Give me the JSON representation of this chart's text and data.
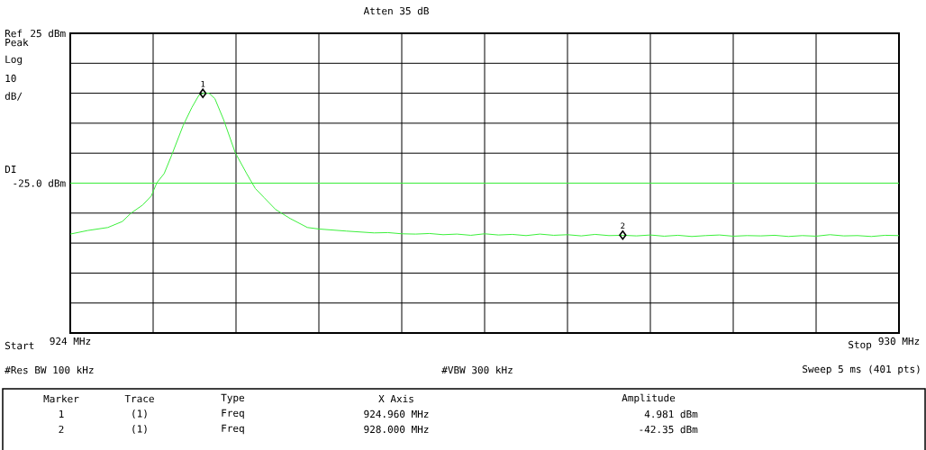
{
  "chart_data": {
    "type": "line",
    "x": [
      924.0,
      924.126,
      924.272,
      924.377,
      924.44,
      924.524,
      924.586,
      924.628,
      924.68,
      924.733,
      924.817,
      924.88,
      924.932,
      924.963,
      925.005,
      925.047,
      925.11,
      925.194,
      925.277,
      925.34,
      925.403,
      925.487,
      925.592,
      925.717,
      925.8,
      926.0,
      926.1,
      926.2,
      926.3,
      926.4,
      926.5,
      926.6,
      926.7,
      926.8,
      926.9,
      927.0,
      927.1,
      927.2,
      927.3,
      927.4,
      927.5,
      927.6,
      927.7,
      927.8,
      927.9,
      928.0,
      928.1,
      928.2,
      928.3,
      928.4,
      928.5,
      928.6,
      928.7,
      928.8,
      928.9,
      929.0,
      929.1,
      929.2,
      929.3,
      929.4,
      929.5,
      929.6,
      929.7,
      929.8,
      929.9,
      930.0
    ],
    "series": [
      {
        "color": "#3cf03c",
        "values": [
          -42,
          -40.8,
          -39.8,
          -37.8,
          -35,
          -32.3,
          -29.3,
          -24.8,
          -21.8,
          -15.8,
          -5.8,
          0.2,
          4.4,
          5.0,
          5.0,
          3.2,
          -3.8,
          -14.8,
          -21.8,
          -26.8,
          -29.8,
          -33.8,
          -36.8,
          -39.8,
          -40.3,
          -41.0,
          -41.3,
          -41.6,
          -41.5,
          -41.9,
          -42.0,
          -41.8,
          -42.2,
          -42.0,
          -42.4,
          -41.9,
          -42.3,
          -42.1,
          -42.5,
          -42.0,
          -42.4,
          -42.2,
          -42.6,
          -42.1,
          -42.5,
          -42.4,
          -42.6,
          -42.3,
          -42.7,
          -42.4,
          -42.8,
          -42.5,
          -42.3,
          -42.7,
          -42.5,
          -42.6,
          -42.4,
          -42.8,
          -42.5,
          -42.7,
          -42.2,
          -42.6,
          -42.5,
          -42.8,
          -42.4,
          -42.5
        ]
      },
      {
        "type": "scatter",
        "color": "#000000",
        "marker": "diamond",
        "x": [
          924.96,
          928.0
        ],
        "values": [
          4.981,
          -42.35
        ]
      }
    ],
    "xlim": [
      924,
      930
    ],
    "ylim": [
      -75,
      25
    ],
    "xticks": [
      {
        "value": 924,
        "label": "924 MHz"
      },
      {
        "value": 924.6,
        "label": null
      },
      {
        "value": 925.2,
        "label": null
      },
      {
        "value": 925.8,
        "label": null
      },
      {
        "value": 926.4,
        "label": null
      },
      {
        "value": 927,
        "label": null
      },
      {
        "value": 927.6,
        "label": null
      },
      {
        "value": 928.2,
        "label": null
      },
      {
        "value": 928.8,
        "label": null
      },
      {
        "value": 929.4,
        "label": null
      },
      {
        "value": 930,
        "label": "930 MHz"
      }
    ],
    "yticks": [
      {
        "value": -75,
        "label": null
      },
      {
        "value": -65,
        "label": null
      },
      {
        "value": -55,
        "label": null
      },
      {
        "value": -45,
        "label": null
      },
      {
        "value": -35,
        "label": null
      },
      {
        "value": -25,
        "label": "-25.0 dBm"
      },
      {
        "value": -15,
        "label": null
      },
      {
        "value": -5,
        "label": null
      },
      {
        "value": 5,
        "label": null
      },
      {
        "value": 15,
        "label": null
      },
      {
        "value": 25,
        "label": "25 dBm"
      }
    ],
    "ref_lines": [
      {
        "axis": "y",
        "value": -25,
        "color": "#3cf03c"
      }
    ],
    "grid": true,
    "annotations": [
      "Atten 35 dB",
      "Peak",
      "Log",
      "10",
      "dB/",
      "Ref",
      "DI",
      "Start",
      "Stop",
      "#Res BW 100 kHz",
      "#VBW 300 kHz",
      "Sweep 5 ms (401 pts)",
      "Marker",
      "Trace",
      "Type",
      "X Axis",
      "Amplitude",
      "1",
      "(1)",
      "Freq",
      "924.960 MHz",
      "4.981 dBm",
      "2",
      "(1)",
      "Freq",
      "928.000 MHz",
      "-42.35 dBm",
      {
        "text": "1",
        "x": 924.96,
        "y": 4.981
      },
      {
        "text": "2",
        "x": 928.0,
        "y": -42.35
      }
    ]
  }
}
